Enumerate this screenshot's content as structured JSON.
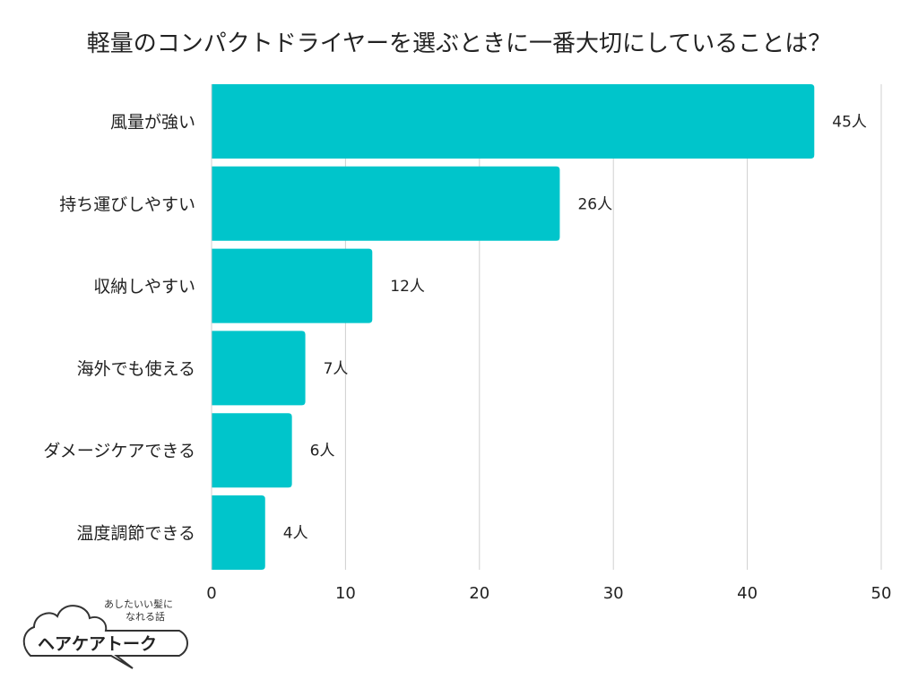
{
  "chart_data": {
    "type": "bar",
    "orientation": "horizontal",
    "title": "軽量のコンパクトドライヤーを選ぶときに一番大切にしていることは？",
    "categories": [
      "風量が強い",
      "持ち運びしやすい",
      "収納しやすい",
      "海外でも使える",
      "ダメージケアできる",
      "温度調節できる"
    ],
    "values": [
      45,
      26,
      12,
      7,
      6,
      4
    ],
    "data_labels": [
      "45人",
      "26人",
      "12人",
      "7人",
      "6人",
      "4人"
    ],
    "xlim": [
      0,
      50
    ],
    "xticks": [
      0,
      10,
      20,
      30,
      40,
      50
    ],
    "grid": true,
    "bar_color": "#00c5cb"
  },
  "logo": {
    "main": "ヘアケアトーク",
    "tagline_1": "あしたいい髪に",
    "tagline_2": "なれる話"
  }
}
